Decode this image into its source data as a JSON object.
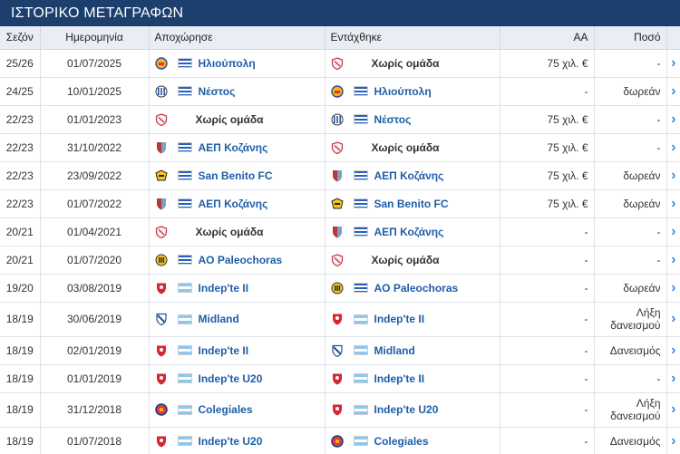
{
  "title": "ΙΣΤΟΡΙΚΟ ΜΕΤΑΓΡΑΦΩΝ",
  "columns": {
    "season": "Σεζόν",
    "date": "Ημερομηνία",
    "left": "Αποχώρησε",
    "joined": "Εντάχθηκε",
    "value": "ΑΑ",
    "fee": "Ποσό"
  },
  "rows": [
    {
      "season": "25/26",
      "date": "01/07/2025",
      "left": "Ηλιούπολη",
      "left_logo": "ilioupoli-crest-icon",
      "left_flag": "gr",
      "joined": "Χωρίς ομάδα",
      "joined_logo": "no-team-icon",
      "joined_flag": "",
      "value": "75 χιλ. €",
      "fee": "-"
    },
    {
      "season": "24/25",
      "date": "10/01/2025",
      "left": "Νέστος",
      "left_logo": "nestos-crest-icon",
      "left_flag": "gr",
      "joined": "Ηλιούπολη",
      "joined_logo": "ilioupoli-crest-icon",
      "joined_flag": "gr",
      "value": "-",
      "fee": "δωρεάν"
    },
    {
      "season": "22/23",
      "date": "01/01/2023",
      "left": "Χωρίς ομάδα",
      "left_logo": "no-team-icon",
      "left_flag": "",
      "joined": "Νέστος",
      "joined_logo": "nestos-crest-icon",
      "joined_flag": "gr",
      "value": "75 χιλ. €",
      "fee": "-"
    },
    {
      "season": "22/23",
      "date": "31/10/2022",
      "left": "ΑΕΠ Κοζάνης",
      "left_logo": "aep-kozanis-crest-icon",
      "left_flag": "gr",
      "joined": "Χωρίς ομάδα",
      "joined_logo": "no-team-icon",
      "joined_flag": "",
      "value": "75 χιλ. €",
      "fee": "-"
    },
    {
      "season": "22/23",
      "date": "23/09/2022",
      "left": "San Benito FC",
      "left_logo": "san-benito-crest-icon",
      "left_flag": "gr",
      "joined": "ΑΕΠ Κοζάνης",
      "joined_logo": "aep-kozanis-crest-icon",
      "joined_flag": "gr",
      "value": "75 χιλ. €",
      "fee": "δωρεάν"
    },
    {
      "season": "22/23",
      "date": "01/07/2022",
      "left": "ΑΕΠ Κοζάνης",
      "left_logo": "aep-kozanis-crest-icon",
      "left_flag": "gr",
      "joined": "San Benito FC",
      "joined_logo": "san-benito-crest-icon",
      "joined_flag": "gr",
      "value": "75 χιλ. €",
      "fee": "δωρεάν"
    },
    {
      "season": "20/21",
      "date": "01/04/2021",
      "left": "Χωρίς ομάδα",
      "left_logo": "no-team-icon",
      "left_flag": "",
      "joined": "ΑΕΠ Κοζάνης",
      "joined_logo": "aep-kozanis-crest-icon",
      "joined_flag": "gr",
      "value": "-",
      "fee": "-"
    },
    {
      "season": "20/21",
      "date": "01/07/2020",
      "left": "AO Paleochoras",
      "left_logo": "paleochoras-crest-icon",
      "left_flag": "gr",
      "joined": "Χωρίς ομάδα",
      "joined_logo": "no-team-icon",
      "joined_flag": "",
      "value": "-",
      "fee": "-"
    },
    {
      "season": "19/20",
      "date": "03/08/2019",
      "left": "Indep'te II",
      "left_logo": "independiente-crest-icon",
      "left_flag": "ar",
      "joined": "AO Paleochoras",
      "joined_logo": "paleochoras-crest-icon",
      "joined_flag": "gr",
      "value": "-",
      "fee": "δωρεάν"
    },
    {
      "season": "18/19",
      "date": "30/06/2019",
      "left": "Midland",
      "left_logo": "midland-crest-icon",
      "left_flag": "ar",
      "joined": "Indep'te II",
      "joined_logo": "independiente-crest-icon",
      "joined_flag": "ar",
      "value": "-",
      "fee": "Λήξη δανεισμού"
    },
    {
      "season": "18/19",
      "date": "02/01/2019",
      "left": "Indep'te II",
      "left_logo": "independiente-crest-icon",
      "left_flag": "ar",
      "joined": "Midland",
      "joined_logo": "midland-crest-icon",
      "joined_flag": "ar",
      "value": "-",
      "fee": "Δανεισμός"
    },
    {
      "season": "18/19",
      "date": "01/01/2019",
      "left": "Indep'te U20",
      "left_logo": "independiente-crest-icon",
      "left_flag": "ar",
      "joined": "Indep'te II",
      "joined_logo": "independiente-crest-icon",
      "joined_flag": "ar",
      "value": "-",
      "fee": "-"
    },
    {
      "season": "18/19",
      "date": "31/12/2018",
      "left": "Colegiales",
      "left_logo": "colegiales-crest-icon",
      "left_flag": "ar",
      "joined": "Indep'te U20",
      "joined_logo": "independiente-crest-icon",
      "joined_flag": "ar",
      "value": "-",
      "fee": "Λήξη δανεισμού"
    },
    {
      "season": "18/19",
      "date": "01/07/2018",
      "left": "Indep'te U20",
      "left_logo": "independiente-crest-icon",
      "left_flag": "ar",
      "joined": "Colegiales",
      "joined_logo": "colegiales-crest-icon",
      "joined_flag": "ar",
      "value": "-",
      "fee": "Δανεισμός"
    }
  ],
  "row_arrow_icon": "chevron-right-icon",
  "colors": {
    "header_bg": "#1d3f6e",
    "link": "#1e5ea8",
    "arrow": "#3a8be0"
  }
}
